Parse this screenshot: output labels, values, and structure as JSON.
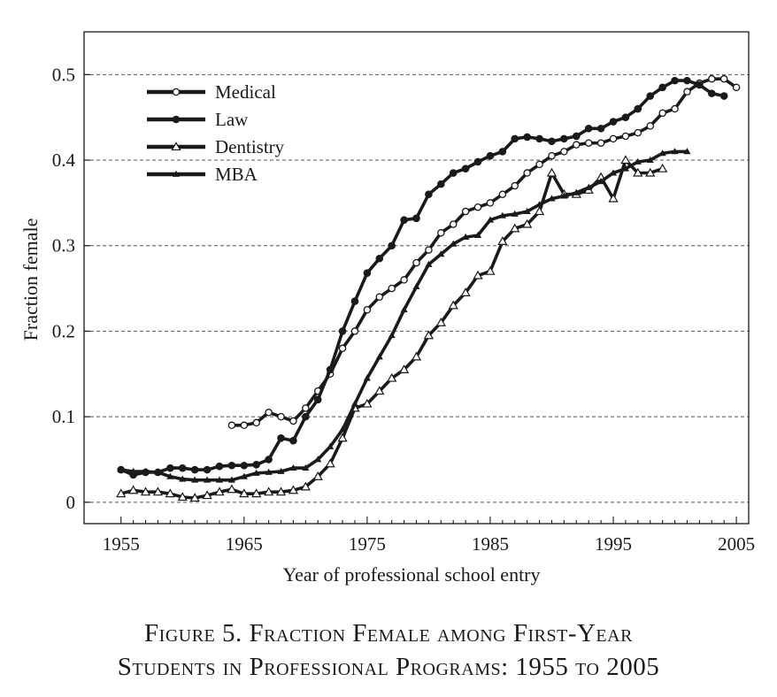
{
  "figure": {
    "caption_line1": "Figure 5. Fraction Female among First-Year",
    "caption_line2": "Students in Professional Programs: 1955 to 2005"
  },
  "chart_data": {
    "type": "line",
    "title": "",
    "xlabel": "Year of professional school entry",
    "ylabel": "Fraction female",
    "xlim": [
      1952,
      2006
    ],
    "ylim": [
      -0.025,
      0.55
    ],
    "xticks": [
      1955,
      1965,
      1975,
      1985,
      1995,
      2005
    ],
    "yticks": [
      0,
      0.1,
      0.2,
      0.3,
      0.4,
      0.5
    ],
    "ytick_labels": [
      "0",
      "0.1",
      "0.2",
      "0.3",
      "0.4",
      "0.5"
    ],
    "grid": "horizontal dashed",
    "legend_position": "top-left",
    "colors": {
      "line": "#1a1a1a",
      "marker_fill_open": "#ffffff",
      "grid": "#555555"
    },
    "series": [
      {
        "name": "Medical",
        "marker": "open-circle",
        "x": [
          1964,
          1965,
          1966,
          1967,
          1968,
          1969,
          1970,
          1971,
          1972,
          1973,
          1974,
          1975,
          1976,
          1977,
          1978,
          1979,
          1980,
          1981,
          1982,
          1983,
          1984,
          1985,
          1986,
          1987,
          1988,
          1989,
          1990,
          1991,
          1992,
          1993,
          1994,
          1995,
          1996,
          1997,
          1998,
          1999,
          2000,
          2001,
          2002,
          2003,
          2004,
          2005
        ],
        "y": [
          0.09,
          0.09,
          0.093,
          0.105,
          0.1,
          0.095,
          0.11,
          0.13,
          0.15,
          0.18,
          0.2,
          0.225,
          0.24,
          0.25,
          0.26,
          0.28,
          0.295,
          0.315,
          0.325,
          0.34,
          0.345,
          0.35,
          0.36,
          0.37,
          0.385,
          0.395,
          0.405,
          0.41,
          0.418,
          0.42,
          0.42,
          0.425,
          0.428,
          0.432,
          0.44,
          0.455,
          0.46,
          0.48,
          0.49,
          0.495,
          0.495,
          0.485
        ]
      },
      {
        "name": "Law",
        "marker": "filled-circle",
        "x": [
          1955,
          1956,
          1957,
          1958,
          1959,
          1960,
          1961,
          1962,
          1963,
          1964,
          1965,
          1966,
          1967,
          1968,
          1969,
          1970,
          1971,
          1972,
          1973,
          1974,
          1975,
          1976,
          1977,
          1978,
          1979,
          1980,
          1981,
          1982,
          1983,
          1984,
          1985,
          1986,
          1987,
          1988,
          1989,
          1990,
          1991,
          1992,
          1993,
          1994,
          1995,
          1996,
          1997,
          1998,
          1999,
          2000,
          2001,
          2002,
          2003,
          2004
        ],
        "y": [
          0.038,
          0.032,
          0.035,
          0.035,
          0.04,
          0.04,
          0.038,
          0.038,
          0.042,
          0.043,
          0.043,
          0.044,
          0.05,
          0.075,
          0.072,
          0.1,
          0.12,
          0.155,
          0.2,
          0.235,
          0.268,
          0.285,
          0.3,
          0.33,
          0.332,
          0.36,
          0.372,
          0.385,
          0.39,
          0.398,
          0.405,
          0.41,
          0.425,
          0.427,
          0.425,
          0.422,
          0.425,
          0.428,
          0.437,
          0.437,
          0.445,
          0.45,
          0.46,
          0.475,
          0.485,
          0.493,
          0.493,
          0.488,
          0.478,
          0.475
        ]
      },
      {
        "name": "Dentistry",
        "marker": "open-triangle",
        "x": [
          1955,
          1956,
          1957,
          1958,
          1959,
          1960,
          1961,
          1962,
          1963,
          1964,
          1965,
          1966,
          1967,
          1968,
          1969,
          1970,
          1971,
          1972,
          1973,
          1974,
          1975,
          1976,
          1977,
          1978,
          1979,
          1980,
          1981,
          1982,
          1983,
          1984,
          1985,
          1986,
          1987,
          1988,
          1989,
          1990,
          1991,
          1992,
          1993,
          1994,
          1995,
          1996,
          1997,
          1998,
          1999
        ],
        "y": [
          0.01,
          0.014,
          0.012,
          0.012,
          0.01,
          0.006,
          0.005,
          0.008,
          0.012,
          0.015,
          0.01,
          0.01,
          0.012,
          0.012,
          0.014,
          0.018,
          0.03,
          0.045,
          0.075,
          0.11,
          0.115,
          0.13,
          0.145,
          0.155,
          0.17,
          0.195,
          0.21,
          0.23,
          0.245,
          0.265,
          0.27,
          0.305,
          0.32,
          0.325,
          0.34,
          0.385,
          0.36,
          0.36,
          0.365,
          0.38,
          0.355,
          0.4,
          0.385,
          0.385,
          0.39
        ]
      },
      {
        "name": "MBA",
        "marker": "small-filled-triangle",
        "x": [
          1955,
          1956,
          1957,
          1958,
          1959,
          1960,
          1961,
          1962,
          1963,
          1964,
          1965,
          1966,
          1967,
          1968,
          1969,
          1970,
          1971,
          1972,
          1973,
          1974,
          1975,
          1976,
          1977,
          1978,
          1979,
          1980,
          1981,
          1982,
          1983,
          1984,
          1985,
          1986,
          1987,
          1988,
          1989,
          1990,
          1991,
          1992,
          1993,
          1994,
          1995,
          1996,
          1997,
          1998,
          1999,
          2000,
          2001
        ],
        "y": [
          0.038,
          0.036,
          0.036,
          0.035,
          0.03,
          0.027,
          0.026,
          0.026,
          0.026,
          0.026,
          0.03,
          0.034,
          0.035,
          0.036,
          0.04,
          0.04,
          0.05,
          0.065,
          0.085,
          0.115,
          0.145,
          0.17,
          0.195,
          0.225,
          0.252,
          0.278,
          0.29,
          0.302,
          0.31,
          0.312,
          0.33,
          0.335,
          0.337,
          0.34,
          0.348,
          0.355,
          0.358,
          0.362,
          0.368,
          0.375,
          0.385,
          0.39,
          0.398,
          0.4,
          0.408,
          0.41,
          0.41
        ]
      }
    ]
  }
}
